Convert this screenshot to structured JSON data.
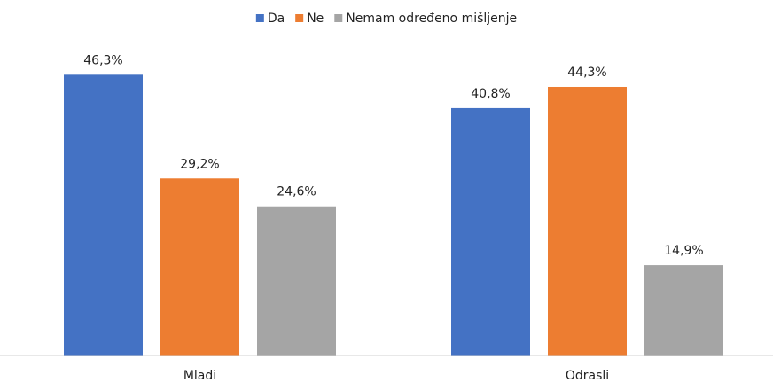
{
  "chart_data": {
    "type": "bar",
    "categories": [
      "Mladi",
      "Odrasli"
    ],
    "series": [
      {
        "name": "Da",
        "color": "#4472c4",
        "values": [
          46.3,
          40.8
        ],
        "value_labels": [
          "46,3%",
          "40,8%"
        ]
      },
      {
        "name": "Ne",
        "color": "#ed7d31",
        "values": [
          29.2,
          44.3
        ],
        "value_labels": [
          "29,2%",
          "44,3%"
        ]
      },
      {
        "name": "Nemam određeno mišljenje",
        "color": "#a5a5a5",
        "values": [
          24.6,
          14.9
        ],
        "value_labels": [
          "24,6%",
          "14,9%"
        ]
      }
    ],
    "ylim": [
      0,
      50
    ],
    "legend": "top"
  }
}
